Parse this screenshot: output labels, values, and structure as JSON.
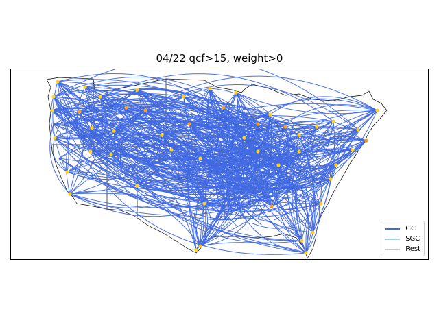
{
  "title": "04/22 qcf>15, weight>0",
  "colors": {
    "edge": "#4169e1",
    "node_yellow": "#ffd21e",
    "node_orange": "#ff9e1b",
    "outline": "#000000"
  },
  "legend": {
    "items": [
      {
        "label": "GC",
        "color": "#4169e1"
      },
      {
        "label": "SGC",
        "color": "#9fd3ee"
      },
      {
        "label": "Rest",
        "color": "#c8c8c8"
      }
    ]
  }
}
